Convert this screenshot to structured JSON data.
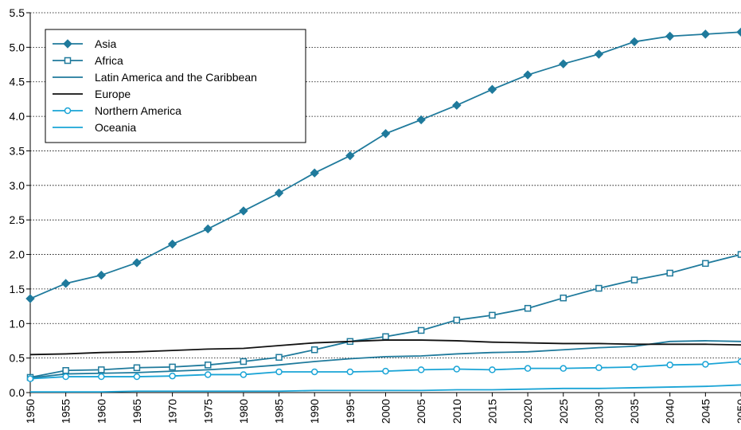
{
  "chart_data": {
    "type": "line",
    "x": [
      1950,
      1955,
      1960,
      1965,
      1970,
      1975,
      1980,
      1985,
      1990,
      1995,
      2000,
      2005,
      2010,
      2015,
      2020,
      2025,
      2030,
      2035,
      2040,
      2045,
      2050
    ],
    "x_tick_labels": [
      "1950",
      "1955",
      "1960",
      "1965",
      "1970",
      "1975",
      "1980",
      "1985",
      "1990",
      "1995",
      "2000",
      "2005",
      "2010",
      "2015",
      "2020",
      "2025",
      "2030",
      "2035",
      "2040",
      "2045",
      "2050"
    ],
    "ylim": [
      0,
      5.5
    ],
    "y_ticks": [
      0,
      0.5,
      1.0,
      1.5,
      2.0,
      2.5,
      3.0,
      3.5,
      4.0,
      4.5,
      5.0,
      5.5
    ],
    "y_tick_labels": [
      "0.0",
      "0.5",
      "1.0",
      "1.5",
      "2.0",
      "2.5",
      "3.0",
      "3.5",
      "4.0",
      "4.5",
      "5.0",
      "5.5"
    ],
    "grid": "horizontal-dotted",
    "legend_position": "top-left",
    "series": [
      {
        "name": "Asia",
        "color": "#1f7a9c",
        "marker": "diamond",
        "values": [
          1.36,
          1.58,
          1.7,
          1.88,
          2.15,
          2.37,
          2.63,
          2.89,
          3.18,
          3.43,
          3.75,
          3.95,
          4.16,
          4.39,
          4.6,
          4.76,
          4.9,
          5.08,
          5.16,
          5.19,
          5.22
        ]
      },
      {
        "name": "Africa",
        "color": "#1f7a9c",
        "marker": "square-open",
        "values": [
          0.22,
          0.32,
          0.33,
          0.36,
          0.37,
          0.4,
          0.45,
          0.51,
          0.62,
          0.74,
          0.81,
          0.9,
          1.05,
          1.12,
          1.22,
          1.37,
          1.51,
          1.63,
          1.73,
          1.87,
          2.0
        ]
      },
      {
        "name": "Latin America and the Caribbean",
        "color": "#1f7a9c",
        "marker": "none",
        "values": [
          0.21,
          0.27,
          0.28,
          0.29,
          0.31,
          0.33,
          0.36,
          0.4,
          0.45,
          0.49,
          0.52,
          0.53,
          0.56,
          0.58,
          0.59,
          0.62,
          0.65,
          0.67,
          0.74,
          0.75,
          0.74
        ]
      },
      {
        "name": "Europe",
        "color": "#111111",
        "marker": "none",
        "values": [
          0.55,
          0.56,
          0.58,
          0.59,
          0.61,
          0.63,
          0.64,
          0.68,
          0.72,
          0.74,
          0.76,
          0.76,
          0.75,
          0.73,
          0.72,
          0.71,
          0.71,
          0.7,
          0.7,
          0.7,
          0.69
        ]
      },
      {
        "name": "Northern America",
        "color": "#1aa4d6",
        "marker": "circle-open",
        "values": [
          0.2,
          0.23,
          0.23,
          0.23,
          0.24,
          0.26,
          0.26,
          0.3,
          0.3,
          0.3,
          0.31,
          0.33,
          0.34,
          0.33,
          0.35,
          0.35,
          0.36,
          0.37,
          0.4,
          0.41,
          0.45
        ]
      },
      {
        "name": "Oceania",
        "color": "#1aa4d6",
        "marker": "none",
        "values": [
          0.01,
          0.01,
          0.01,
          0.02,
          0.02,
          0.02,
          0.02,
          0.02,
          0.03,
          0.03,
          0.03,
          0.03,
          0.04,
          0.04,
          0.05,
          0.06,
          0.06,
          0.07,
          0.08,
          0.09,
          0.11
        ]
      }
    ]
  }
}
